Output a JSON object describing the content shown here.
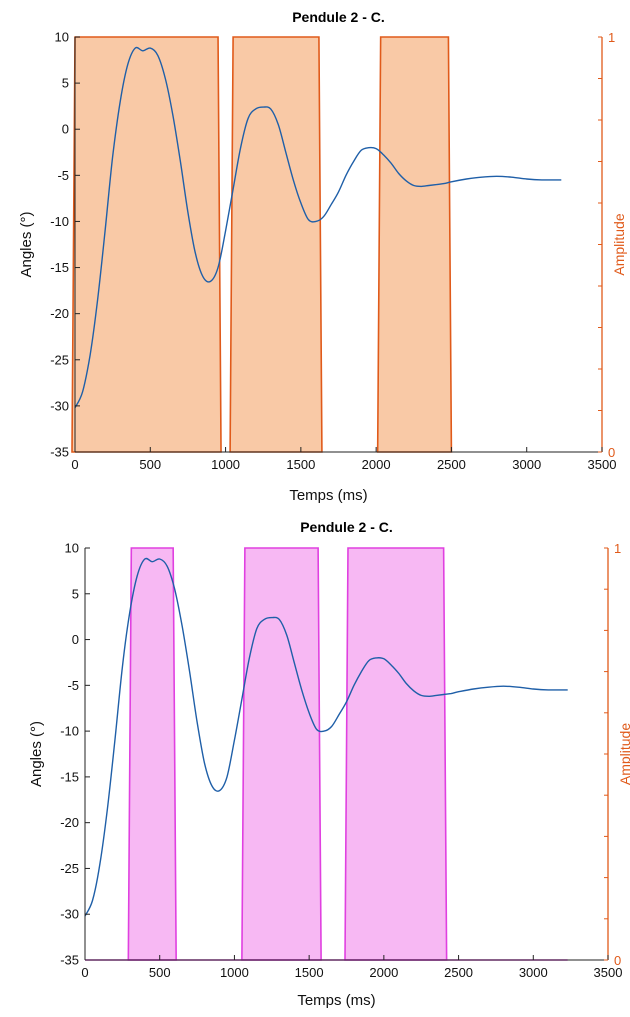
{
  "chart_data": [
    {
      "type": "line",
      "title": "Pendule 2 - C.",
      "xlabel": "Temps (ms)",
      "ylabel": "Angles (°)",
      "y2label": "Amplitude",
      "xlim": [
        0,
        3500
      ],
      "ylim": [
        -35,
        10
      ],
      "y2lim": [
        0,
        1
      ],
      "xticks": [
        "0",
        "500",
        "1000",
        "1500",
        "2000",
        "2500",
        "3000",
        "3500"
      ],
      "yticks": [
        "10",
        "5",
        "0",
        "-5",
        "-10",
        "-15",
        "-20",
        "-25",
        "-30",
        "-35"
      ],
      "y2ticks": [
        "1",
        "0"
      ],
      "grid": false,
      "colors": {
        "line": "#1f5fa8",
        "pulse_fill": "#f9c9a6",
        "pulse_edge": "#e05a1a",
        "right_axis": "#e05a1a"
      },
      "series": [
        {
          "x": [
            0,
            50,
            100,
            150,
            200,
            250,
            300,
            350,
            400,
            450,
            500,
            550,
            600,
            650,
            700,
            750,
            800,
            850,
            900,
            950,
            1000,
            1050,
            1100,
            1150,
            1200,
            1250,
            1300,
            1350,
            1400,
            1450,
            1500,
            1550,
            1600,
            1650,
            1700,
            1750,
            1800,
            1850,
            1900,
            1950,
            2000,
            2050,
            2100,
            2150,
            2200,
            2250,
            2300,
            2350,
            2400,
            2450,
            2500,
            2600,
            2700,
            2800,
            2900,
            3000,
            3100,
            3230
          ],
          "y": [
            -30.2,
            -28.5,
            -24.5,
            -18.5,
            -11,
            -3,
            3,
            7,
            8.8,
            8.5,
            8.8,
            8,
            5.5,
            1.5,
            -3.5,
            -9,
            -13.5,
            -16,
            -16.5,
            -15,
            -11,
            -6.5,
            -2,
            1.2,
            2.2,
            2.4,
            2.2,
            0.5,
            -2.5,
            -5.5,
            -8,
            -9.8,
            -10,
            -9.5,
            -8.2,
            -6.8,
            -5,
            -3.5,
            -2.3,
            -2,
            -2.1,
            -2.8,
            -3.7,
            -4.8,
            -5.6,
            -6.1,
            -6.2,
            -6.1,
            -6,
            -5.9,
            -5.7,
            -5.4,
            -5.2,
            -5.1,
            -5.2,
            -5.4,
            -5.5,
            -5.5
          ]
        }
      ],
      "pulses": [
        {
          "start": 0,
          "end": 950,
          "amplitude": 1
        },
        {
          "start": 1050,
          "end": 1620,
          "amplitude": 1
        },
        {
          "start": 2030,
          "end": 2480,
          "amplitude": 1
        }
      ]
    },
    {
      "type": "line",
      "title": "Pendule 2 - C.",
      "xlabel": "Temps (ms)",
      "ylabel": "Angles (°)",
      "y2label": "Amplitude",
      "xlim": [
        0,
        3500
      ],
      "ylim": [
        -35,
        10
      ],
      "y2lim": [
        0,
        1
      ],
      "xticks": [
        "0",
        "500",
        "1000",
        "1500",
        "2000",
        "2500",
        "3000",
        "3500"
      ],
      "yticks": [
        "10",
        "5",
        "0",
        "-5",
        "-10",
        "-15",
        "-20",
        "-25",
        "-30",
        "-35"
      ],
      "y2ticks": [
        "1",
        "0"
      ],
      "grid": false,
      "colors": {
        "line": "#1f5fa8",
        "pulse_fill": "#f7b8f3",
        "pulse_edge": "#e040e0",
        "right_axis": "#e05a1a"
      },
      "series": [
        {
          "x": [
            0,
            50,
            100,
            150,
            200,
            250,
            300,
            350,
            400,
            450,
            500,
            550,
            600,
            650,
            700,
            750,
            800,
            850,
            900,
            950,
            1000,
            1050,
            1100,
            1150,
            1200,
            1250,
            1300,
            1350,
            1400,
            1450,
            1500,
            1550,
            1600,
            1650,
            1700,
            1750,
            1800,
            1850,
            1900,
            1950,
            2000,
            2050,
            2100,
            2150,
            2200,
            2250,
            2300,
            2350,
            2400,
            2450,
            2500,
            2600,
            2700,
            2800,
            2900,
            3000,
            3100,
            3230
          ],
          "y": [
            -30.2,
            -28.5,
            -24.5,
            -18.5,
            -11,
            -3,
            3,
            7,
            8.8,
            8.5,
            8.8,
            8,
            5.5,
            1.5,
            -3.5,
            -9,
            -13.5,
            -16,
            -16.5,
            -15,
            -11,
            -6.5,
            -2,
            1.2,
            2.2,
            2.4,
            2.2,
            0.5,
            -2.5,
            -5.5,
            -8,
            -9.8,
            -10,
            -9.5,
            -8.2,
            -6.8,
            -5,
            -3.5,
            -2.3,
            -2,
            -2.1,
            -2.8,
            -3.7,
            -4.8,
            -5.6,
            -6.1,
            -6.2,
            -6.1,
            -6,
            -5.9,
            -5.7,
            -5.4,
            -5.2,
            -5.1,
            -5.2,
            -5.4,
            -5.5,
            -5.5
          ]
        }
      ],
      "pulses": [
        {
          "start": 310,
          "end": 590,
          "amplitude": 1
        },
        {
          "start": 1070,
          "end": 1560,
          "amplitude": 1
        },
        {
          "start": 1760,
          "end": 2400,
          "amplitude": 1
        }
      ]
    }
  ]
}
